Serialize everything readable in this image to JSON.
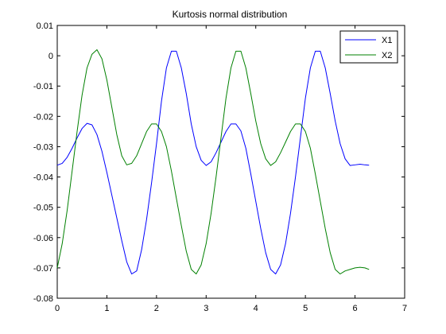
{
  "chart_data": {
    "type": "line",
    "title": "Kurtosis normal distribution",
    "xlabel": "",
    "ylabel": "",
    "xlim": [
      0,
      7
    ],
    "ylim": [
      -0.08,
      0.01
    ],
    "x_ticks": [
      0,
      1,
      2,
      3,
      4,
      5,
      6,
      7
    ],
    "y_ticks": [
      0.01,
      0,
      -0.01,
      -0.02,
      -0.03,
      -0.04,
      -0.05,
      -0.06,
      -0.07,
      -0.08
    ],
    "x_tick_labels": [
      "0",
      "1",
      "2",
      "3",
      "4",
      "5",
      "6",
      "7"
    ],
    "y_tick_labels": [
      "0.01",
      "0",
      "-0.01",
      "-0.02",
      "-0.03",
      "-0.04",
      "-0.05",
      "-0.06",
      "-0.07",
      "-0.08"
    ],
    "grid": false,
    "legend": "top-right",
    "x_range": [
      0,
      6.283
    ],
    "series": [
      {
        "name": "X1",
        "color": "#0000ff",
        "x": [
          0,
          0.1,
          0.2,
          0.3,
          0.4,
          0.5,
          0.6,
          0.7,
          0.8,
          0.9,
          1.0,
          1.1,
          1.2,
          1.3,
          1.4,
          1.5,
          1.6,
          1.7,
          1.8,
          1.9,
          2.0,
          2.1,
          2.2,
          2.3,
          2.4,
          2.5,
          2.6,
          2.7,
          2.8,
          2.9,
          3.0,
          3.1,
          3.2,
          3.3,
          3.4,
          3.5,
          3.6,
          3.7,
          3.8,
          3.9,
          4.0,
          4.1,
          4.2,
          4.3,
          4.4,
          4.5,
          4.6,
          4.7,
          4.8,
          4.9,
          5.0,
          5.1,
          5.2,
          5.3,
          5.4,
          5.5,
          5.6,
          5.7,
          5.8,
          5.9,
          6.0,
          6.1,
          6.2,
          6.283
        ],
        "y": [
          -0.0361,
          -0.0355,
          -0.0335,
          -0.0305,
          -0.0271,
          -0.024,
          -0.0223,
          -0.0228,
          -0.026,
          -0.0315,
          -0.0385,
          -0.046,
          -0.0535,
          -0.061,
          -0.068,
          -0.072,
          -0.071,
          -0.064,
          -0.054,
          -0.042,
          -0.029,
          -0.015,
          -0.004,
          0.0015,
          0.0015,
          -0.004,
          -0.0125,
          -0.0225,
          -0.03,
          -0.0345,
          -0.0362,
          -0.035,
          -0.032,
          -0.0285,
          -0.025,
          -0.0225,
          -0.0225,
          -0.0248,
          -0.0305,
          -0.039,
          -0.048,
          -0.057,
          -0.065,
          -0.0705,
          -0.072,
          -0.069,
          -0.062,
          -0.052,
          -0.04,
          -0.027,
          -0.014,
          -0.004,
          0.0015,
          0.0015,
          -0.004,
          -0.0125,
          -0.0215,
          -0.029,
          -0.034,
          -0.0362,
          -0.036,
          -0.0358,
          -0.036,
          -0.0361
        ]
      },
      {
        "name": "X2",
        "color": "#008000",
        "x": [
          0,
          0.1,
          0.2,
          0.3,
          0.4,
          0.5,
          0.6,
          0.7,
          0.8,
          0.9,
          1.0,
          1.1,
          1.2,
          1.3,
          1.4,
          1.5,
          1.6,
          1.7,
          1.8,
          1.9,
          2.0,
          2.1,
          2.2,
          2.3,
          2.4,
          2.5,
          2.6,
          2.7,
          2.8,
          2.9,
          3.0,
          3.1,
          3.2,
          3.3,
          3.4,
          3.5,
          3.6,
          3.7,
          3.8,
          3.9,
          4.0,
          4.1,
          4.2,
          4.3,
          4.4,
          4.5,
          4.6,
          4.7,
          4.8,
          4.9,
          5.0,
          5.1,
          5.2,
          5.3,
          5.4,
          5.5,
          5.6,
          5.7,
          5.8,
          5.9,
          6.0,
          6.1,
          6.2,
          6.283
        ],
        "y": [
          -0.07,
          -0.062,
          -0.051,
          -0.038,
          -0.025,
          -0.013,
          -0.004,
          0.0005,
          0.002,
          -0.001,
          -0.008,
          -0.017,
          -0.026,
          -0.033,
          -0.036,
          -0.0355,
          -0.033,
          -0.029,
          -0.025,
          -0.0225,
          -0.0225,
          -0.025,
          -0.03,
          -0.038,
          -0.047,
          -0.056,
          -0.0645,
          -0.0705,
          -0.072,
          -0.069,
          -0.062,
          -0.052,
          -0.04,
          -0.027,
          -0.014,
          -0.004,
          0.0015,
          0.0015,
          -0.004,
          -0.0125,
          -0.0215,
          -0.029,
          -0.034,
          -0.0362,
          -0.035,
          -0.032,
          -0.0285,
          -0.025,
          -0.0225,
          -0.0225,
          -0.025,
          -0.0305,
          -0.039,
          -0.048,
          -0.057,
          -0.065,
          -0.0705,
          -0.072,
          -0.071,
          -0.0705,
          -0.07,
          -0.0698,
          -0.07,
          -0.0705
        ]
      }
    ]
  }
}
